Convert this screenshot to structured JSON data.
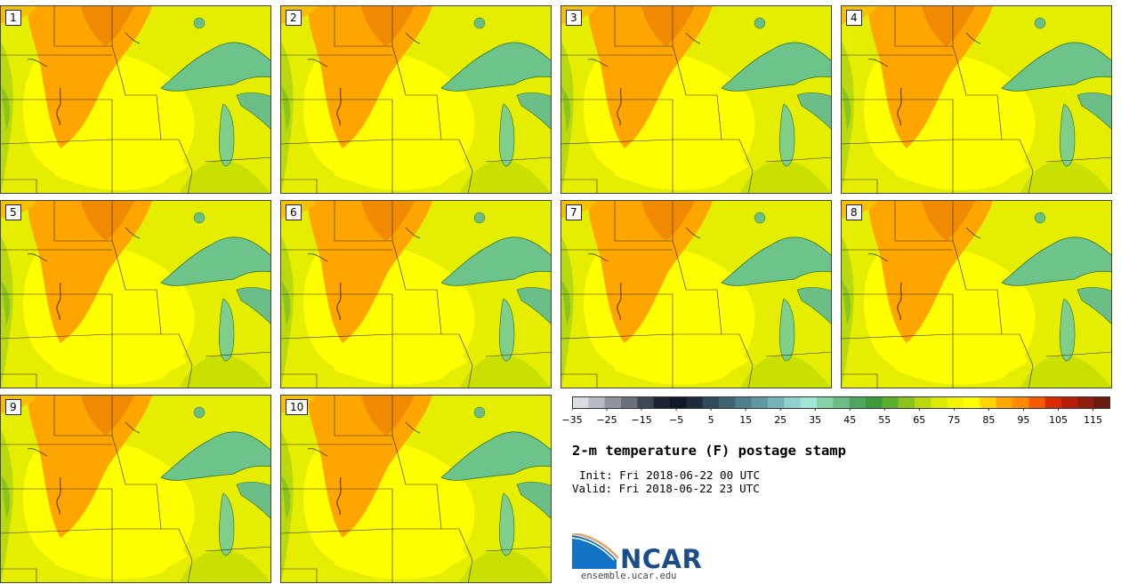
{
  "panels": [
    {
      "label": "1"
    },
    {
      "label": "2"
    },
    {
      "label": "3"
    },
    {
      "label": "4"
    },
    {
      "label": "5"
    },
    {
      "label": "6"
    },
    {
      "label": "7"
    },
    {
      "label": "8"
    },
    {
      "label": "9"
    },
    {
      "label": "10"
    }
  ],
  "colorbar": {
    "ticks": [
      "−35",
      "−25",
      "−15",
      "−5",
      "5",
      "15",
      "25",
      "35",
      "45",
      "55",
      "65",
      "75",
      "85",
      "95",
      "105",
      "115"
    ],
    "min": -35,
    "max": 120,
    "colors": [
      "#d9dee3",
      "#b5bcc3",
      "#8e959d",
      "#6a717a",
      "#3f4654",
      "#1c2433",
      "#111827",
      "#1d2b3a",
      "#2f4a5a",
      "#3e6474",
      "#4f7f8c",
      "#5f98a4",
      "#73b4b8",
      "#8dd2cc",
      "#a2e6d8",
      "#84d3a6",
      "#6bbf86",
      "#4fa65c",
      "#3b9a3c",
      "#5aae2e",
      "#8cc41e",
      "#b9d80e",
      "#dbeb00",
      "#f4f400",
      "#ffff00",
      "#ffd400",
      "#ffa600",
      "#ff8a00",
      "#f55a00",
      "#d62a00",
      "#b51e0a",
      "#8f1c0c",
      "#6b1a0e"
    ]
  },
  "title": "2-m temperature (F) postage stamp",
  "init": "Init: Fri 2018-06-22 00 UTC",
  "valid": "Valid: Fri 2018-06-22 23 UTC",
  "logo": {
    "name": "NCAR",
    "url": "ensemble.ucar.edu"
  },
  "map_colors": {
    "warm": "#ffa500",
    "hot": "#f08a00",
    "mild": "#ffff00",
    "cool": "#d4e600",
    "lake": "#6cc48a",
    "land_base": "#e5ee00"
  }
}
